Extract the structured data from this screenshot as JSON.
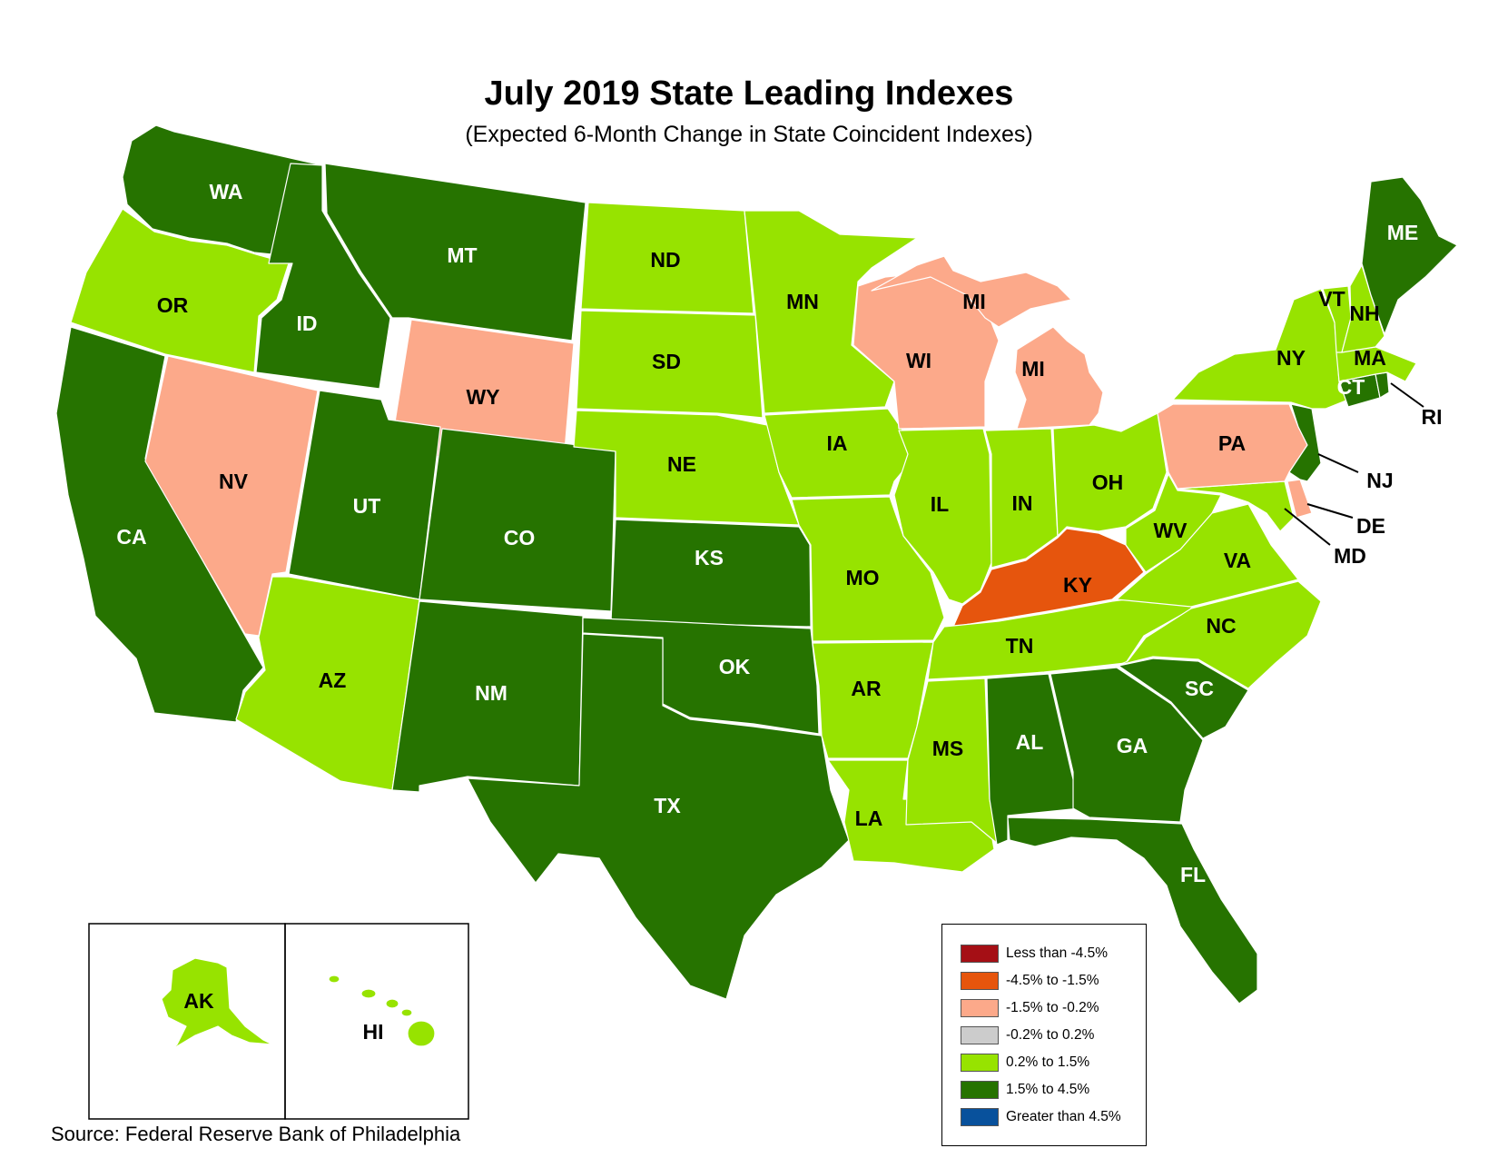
{
  "title": "July 2019 State Leading Indexes",
  "subtitle": "(Expected 6-Month Change in State Coincident Indexes)",
  "source": "Source: Federal Reserve Bank of Philadelphia",
  "colors": {
    "lt_neg45": "#a50f15",
    "neg45_neg15": "#e6550d",
    "neg15_neg02": "#fca98a",
    "neg02_02": "#cccccc",
    "p02_15": "#97e300",
    "p15_45": "#267300",
    "gt_45": "#08519c"
  },
  "legend": [
    {
      "label": "Less than -4.5%",
      "color": "#a50f15"
    },
    {
      "label": "-4.5% to -1.5%",
      "color": "#e6550d"
    },
    {
      "label": "-1.5% to -0.2%",
      "color": "#fca98a"
    },
    {
      "label": "-0.2% to 0.2%",
      "color": "#cccccc"
    },
    {
      "label": "0.2% to 1.5%",
      "color": "#97e300"
    },
    {
      "label": "1.5% to 4.5%",
      "color": "#267300"
    },
    {
      "label": "Greater than 4.5%",
      "color": "#08519c"
    }
  ],
  "states": {
    "WA": {
      "label": "WA",
      "category": "1.5% to 4.5%"
    },
    "OR": {
      "label": "OR",
      "category": "0.2% to 1.5%"
    },
    "CA": {
      "label": "CA",
      "category": "1.5% to 4.5%"
    },
    "NV": {
      "label": "NV",
      "category": "-1.5% to -0.2%"
    },
    "ID": {
      "label": "ID",
      "category": "1.5% to 4.5%"
    },
    "MT": {
      "label": "MT",
      "category": "1.5% to 4.5%"
    },
    "WY": {
      "label": "WY",
      "category": "-1.5% to -0.2%"
    },
    "UT": {
      "label": "UT",
      "category": "1.5% to 4.5%"
    },
    "AZ": {
      "label": "AZ",
      "category": "0.2% to 1.5%"
    },
    "CO": {
      "label": "CO",
      "category": "1.5% to 4.5%"
    },
    "NM": {
      "label": "NM",
      "category": "1.5% to 4.5%"
    },
    "ND": {
      "label": "ND",
      "category": "0.2% to 1.5%"
    },
    "SD": {
      "label": "SD",
      "category": "0.2% to 1.5%"
    },
    "NE": {
      "label": "NE",
      "category": "0.2% to 1.5%"
    },
    "KS": {
      "label": "KS",
      "category": "1.5% to 4.5%"
    },
    "OK": {
      "label": "OK",
      "category": "1.5% to 4.5%"
    },
    "TX": {
      "label": "TX",
      "category": "1.5% to 4.5%"
    },
    "MN": {
      "label": "MN",
      "category": "0.2% to 1.5%"
    },
    "IA": {
      "label": "IA",
      "category": "0.2% to 1.5%"
    },
    "MO": {
      "label": "MO",
      "category": "0.2% to 1.5%"
    },
    "AR": {
      "label": "AR",
      "category": "0.2% to 1.5%"
    },
    "LA": {
      "label": "LA",
      "category": "0.2% to 1.5%"
    },
    "WI": {
      "label": "WI",
      "category": "-1.5% to -0.2%"
    },
    "MI": {
      "label": "MI",
      "category": "-1.5% to -0.2%"
    },
    "MI_UP": {
      "label": "MI",
      "category": "-1.5% to -0.2%"
    },
    "IL": {
      "label": "IL",
      "category": "0.2% to 1.5%"
    },
    "IN": {
      "label": "IN",
      "category": "0.2% to 1.5%"
    },
    "OH": {
      "label": "OH",
      "category": "0.2% to 1.5%"
    },
    "KY": {
      "label": "KY",
      "category": "-4.5% to -1.5%"
    },
    "TN": {
      "label": "TN",
      "category": "0.2% to 1.5%"
    },
    "MS": {
      "label": "MS",
      "category": "0.2% to 1.5%"
    },
    "AL": {
      "label": "AL",
      "category": "1.5% to 4.5%"
    },
    "GA": {
      "label": "GA",
      "category": "1.5% to 4.5%"
    },
    "FL": {
      "label": "FL",
      "category": "1.5% to 4.5%"
    },
    "SC": {
      "label": "SC",
      "category": "1.5% to 4.5%"
    },
    "NC": {
      "label": "NC",
      "category": "0.2% to 1.5%"
    },
    "VA": {
      "label": "VA",
      "category": "0.2% to 1.5%"
    },
    "WV": {
      "label": "WV",
      "category": "0.2% to 1.5%"
    },
    "PA": {
      "label": "PA",
      "category": "-1.5% to -0.2%"
    },
    "NY": {
      "label": "NY",
      "category": "0.2% to 1.5%"
    },
    "VT": {
      "label": "VT",
      "category": "0.2% to 1.5%"
    },
    "NH": {
      "label": "NH",
      "category": "0.2% to 1.5%"
    },
    "ME": {
      "label": "ME",
      "category": "1.5% to 4.5%"
    },
    "MA": {
      "label": "MA",
      "category": "0.2% to 1.5%"
    },
    "CT": {
      "label": "CT",
      "category": "1.5% to 4.5%"
    },
    "RI": {
      "label": "RI",
      "category": "1.5% to 4.5%"
    },
    "NJ": {
      "label": "NJ",
      "category": "1.5% to 4.5%"
    },
    "DE": {
      "label": "DE",
      "category": "-1.5% to -0.2%"
    },
    "MD": {
      "label": "MD",
      "category": "0.2% to 1.5%"
    },
    "AK": {
      "label": "AK",
      "category": "0.2% to 1.5%"
    },
    "HI": {
      "label": "HI",
      "category": "0.2% to 1.5%"
    }
  }
}
